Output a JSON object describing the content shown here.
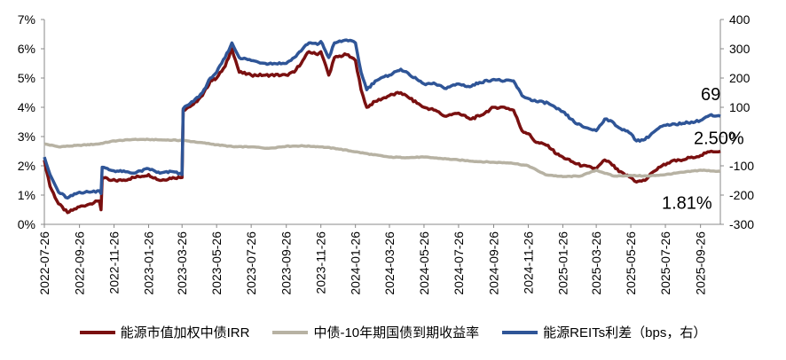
{
  "chart_data": {
    "type": "line",
    "x_ticks": [
      "2022-07-26",
      "2022-09-26",
      "2022-11-26",
      "2023-01-26",
      "2023-03-26",
      "2023-05-26",
      "2023-07-26",
      "2023-09-26",
      "2023-11-26",
      "2024-01-26",
      "2024-03-26",
      "2024-05-26",
      "2024-07-26",
      "2024-09-26",
      "2024-11-26",
      "2025-01-26",
      "2025-03-26",
      "2025-05-26",
      "2025-07-26",
      "2025-09-26"
    ],
    "x_range": [
      "2022-07-26",
      "2025-10-31"
    ],
    "y_left": {
      "ticks": [
        "0%",
        "1%",
        "2%",
        "3%",
        "4%",
        "5%",
        "6%",
        "7%"
      ],
      "range": [
        0,
        7
      ]
    },
    "y_right": {
      "ticks": [
        "-300",
        "-200",
        "-100",
        "0",
        "100",
        "200",
        "300",
        "400"
      ],
      "range": [
        -300,
        400
      ]
    },
    "series": [
      {
        "name": "能源市值加权中债IRR",
        "axis": "left",
        "color": "#7a1010",
        "points": [
          [
            "2022-07-26",
            2.2
          ],
          [
            "2022-08-05",
            1.3
          ],
          [
            "2022-08-20",
            0.7
          ],
          [
            "2022-09-05",
            0.4
          ],
          [
            "2022-09-26",
            0.6
          ],
          [
            "2022-10-15",
            0.7
          ],
          [
            "2022-10-31",
            0.8
          ],
          [
            "2022-11-03",
            0.5
          ],
          [
            "2022-11-05",
            1.6
          ],
          [
            "2022-11-20",
            1.5
          ],
          [
            "2022-12-10",
            1.5
          ],
          [
            "2022-12-31",
            1.6
          ],
          [
            "2023-01-26",
            1.7
          ],
          [
            "2023-02-15",
            1.5
          ],
          [
            "2023-03-10",
            1.6
          ],
          [
            "2023-03-26",
            1.6
          ],
          [
            "2023-03-28",
            3.9
          ],
          [
            "2023-04-15",
            4.1
          ],
          [
            "2023-05-01",
            4.4
          ],
          [
            "2023-05-15",
            4.9
          ],
          [
            "2023-05-26",
            5.0
          ],
          [
            "2023-06-10",
            5.4
          ],
          [
            "2023-06-22",
            6.0
          ],
          [
            "2023-07-05",
            5.2
          ],
          [
            "2023-07-26",
            5.1
          ],
          [
            "2023-08-20",
            5.1
          ],
          [
            "2023-09-26",
            5.1
          ],
          [
            "2023-10-10",
            5.2
          ],
          [
            "2023-10-25",
            5.6
          ],
          [
            "2023-11-05",
            5.9
          ],
          [
            "2023-11-20",
            5.8
          ],
          [
            "2023-11-26",
            5.9
          ],
          [
            "2023-12-10",
            5.1
          ],
          [
            "2023-12-20",
            5.7
          ],
          [
            "2024-01-10",
            5.8
          ],
          [
            "2024-01-26",
            5.6
          ],
          [
            "2024-02-05",
            4.6
          ],
          [
            "2024-02-15",
            4.0
          ],
          [
            "2024-03-01",
            4.2
          ],
          [
            "2024-03-26",
            4.4
          ],
          [
            "2024-04-15",
            4.5
          ],
          [
            "2024-05-01",
            4.3
          ],
          [
            "2024-05-26",
            4.0
          ],
          [
            "2024-06-15",
            3.9
          ],
          [
            "2024-07-01",
            3.7
          ],
          [
            "2024-07-26",
            3.8
          ],
          [
            "2024-08-15",
            3.6
          ],
          [
            "2024-09-01",
            3.7
          ],
          [
            "2024-09-26",
            4.0
          ],
          [
            "2024-10-15",
            4.0
          ],
          [
            "2024-10-31",
            3.9
          ],
          [
            "2024-11-15",
            3.2
          ],
          [
            "2024-11-26",
            3.1
          ],
          [
            "2024-12-10",
            2.8
          ],
          [
            "2024-12-31",
            2.7
          ],
          [
            "2025-01-15",
            2.4
          ],
          [
            "2025-01-26",
            2.3
          ],
          [
            "2025-02-15",
            2.1
          ],
          [
            "2025-03-01",
            2.0
          ],
          [
            "2025-03-26",
            1.9
          ],
          [
            "2025-04-10",
            2.2
          ],
          [
            "2025-04-20",
            2.1
          ],
          [
            "2025-05-05",
            1.8
          ],
          [
            "2025-05-26",
            1.6
          ],
          [
            "2025-06-05",
            1.45
          ],
          [
            "2025-06-20",
            1.5
          ],
          [
            "2025-07-05",
            1.8
          ],
          [
            "2025-07-20",
            2.0
          ],
          [
            "2025-08-05",
            2.15
          ],
          [
            "2025-08-26",
            2.2
          ],
          [
            "2025-09-10",
            2.3
          ],
          [
            "2025-09-26",
            2.35
          ],
          [
            "2025-10-15",
            2.5
          ],
          [
            "2025-10-31",
            2.5
          ]
        ]
      },
      {
        "name": "中债-10年期国债到期收益率",
        "axis": "left",
        "color": "#b7b2a3",
        "points": [
          [
            "2022-07-26",
            2.75
          ],
          [
            "2022-08-20",
            2.65
          ],
          [
            "2022-09-26",
            2.7
          ],
          [
            "2022-10-31",
            2.75
          ],
          [
            "2022-11-26",
            2.85
          ],
          [
            "2022-12-31",
            2.9
          ],
          [
            "2023-01-26",
            2.9
          ],
          [
            "2023-02-26",
            2.88
          ],
          [
            "2023-03-26",
            2.87
          ],
          [
            "2023-04-26",
            2.8
          ],
          [
            "2023-05-26",
            2.72
          ],
          [
            "2023-06-26",
            2.65
          ],
          [
            "2023-07-26",
            2.65
          ],
          [
            "2023-08-26",
            2.6
          ],
          [
            "2023-09-26",
            2.67
          ],
          [
            "2023-10-26",
            2.68
          ],
          [
            "2023-11-26",
            2.65
          ],
          [
            "2023-12-26",
            2.58
          ],
          [
            "2024-01-26",
            2.48
          ],
          [
            "2024-02-26",
            2.38
          ],
          [
            "2024-03-26",
            2.3
          ],
          [
            "2024-04-26",
            2.28
          ],
          [
            "2024-05-26",
            2.3
          ],
          [
            "2024-06-26",
            2.25
          ],
          [
            "2024-07-26",
            2.2
          ],
          [
            "2024-08-26",
            2.15
          ],
          [
            "2024-09-26",
            2.12
          ],
          [
            "2024-10-26",
            2.1
          ],
          [
            "2024-11-26",
            2.0
          ],
          [
            "2024-12-26",
            1.7
          ],
          [
            "2025-01-26",
            1.63
          ],
          [
            "2025-02-26",
            1.65
          ],
          [
            "2025-03-26",
            1.85
          ],
          [
            "2025-04-26",
            1.65
          ],
          [
            "2025-05-26",
            1.67
          ],
          [
            "2025-06-26",
            1.65
          ],
          [
            "2025-07-26",
            1.7
          ],
          [
            "2025-08-26",
            1.78
          ],
          [
            "2025-09-26",
            1.85
          ],
          [
            "2025-10-31",
            1.81
          ]
        ]
      },
      {
        "name": "能源REITs利差（bps，右）",
        "axis": "right",
        "color": "#2f5597",
        "points": [
          [
            "2022-07-26",
            -70
          ],
          [
            "2022-08-05",
            -130
          ],
          [
            "2022-08-20",
            -190
          ],
          [
            "2022-09-05",
            -210
          ],
          [
            "2022-09-26",
            -190
          ],
          [
            "2022-10-15",
            -190
          ],
          [
            "2022-10-31",
            -185
          ],
          [
            "2022-11-03",
            -195
          ],
          [
            "2022-11-05",
            -105
          ],
          [
            "2022-11-20",
            -115
          ],
          [
            "2022-12-10",
            -120
          ],
          [
            "2022-12-31",
            -125
          ],
          [
            "2023-01-26",
            -110
          ],
          [
            "2023-02-15",
            -125
          ],
          [
            "2023-03-10",
            -120
          ],
          [
            "2023-03-26",
            -130
          ],
          [
            "2023-03-28",
            95
          ],
          [
            "2023-04-15",
            120
          ],
          [
            "2023-05-01",
            150
          ],
          [
            "2023-05-15",
            200
          ],
          [
            "2023-05-26",
            220
          ],
          [
            "2023-06-10",
            270
          ],
          [
            "2023-06-22",
            320
          ],
          [
            "2023-07-05",
            270
          ],
          [
            "2023-07-26",
            260
          ],
          [
            "2023-08-20",
            250
          ],
          [
            "2023-09-26",
            250
          ],
          [
            "2023-10-10",
            270
          ],
          [
            "2023-10-25",
            300
          ],
          [
            "2023-11-05",
            320
          ],
          [
            "2023-11-20",
            315
          ],
          [
            "2023-11-26",
            325
          ],
          [
            "2023-12-10",
            270
          ],
          [
            "2023-12-20",
            320
          ],
          [
            "2024-01-10",
            330
          ],
          [
            "2024-01-26",
            320
          ],
          [
            "2024-02-05",
            220
          ],
          [
            "2024-02-15",
            160
          ],
          [
            "2024-03-01",
            190
          ],
          [
            "2024-03-26",
            210
          ],
          [
            "2024-04-15",
            230
          ],
          [
            "2024-05-01",
            210
          ],
          [
            "2024-05-26",
            180
          ],
          [
            "2024-06-15",
            180
          ],
          [
            "2024-07-01",
            165
          ],
          [
            "2024-07-26",
            180
          ],
          [
            "2024-08-15",
            170
          ],
          [
            "2024-09-01",
            185
          ],
          [
            "2024-09-26",
            195
          ],
          [
            "2024-10-15",
            190
          ],
          [
            "2024-10-31",
            190
          ],
          [
            "2024-11-15",
            140
          ],
          [
            "2024-11-26",
            130
          ],
          [
            "2024-12-10",
            120
          ],
          [
            "2024-12-31",
            115
          ],
          [
            "2025-01-15",
            95
          ],
          [
            "2025-01-26",
            85
          ],
          [
            "2025-02-15",
            50
          ],
          [
            "2025-03-01",
            35
          ],
          [
            "2025-03-26",
            20
          ],
          [
            "2025-04-10",
            60
          ],
          [
            "2025-04-20",
            55
          ],
          [
            "2025-05-05",
            30
          ],
          [
            "2025-05-26",
            10
          ],
          [
            "2025-06-05",
            -15
          ],
          [
            "2025-06-20",
            -10
          ],
          [
            "2025-07-05",
            15
          ],
          [
            "2025-07-20",
            35
          ],
          [
            "2025-08-05",
            40
          ],
          [
            "2025-08-26",
            45
          ],
          [
            "2025-09-10",
            50
          ],
          [
            "2025-09-26",
            55
          ],
          [
            "2025-10-15",
            75
          ],
          [
            "2025-10-31",
            69
          ]
        ]
      }
    ],
    "annotations": [
      {
        "text": "69",
        "series": 2
      },
      {
        "text": "2.50%",
        "series": 0
      },
      {
        "text": "1.81%",
        "series": 1
      }
    ],
    "legend_position": "bottom",
    "grid": false
  }
}
